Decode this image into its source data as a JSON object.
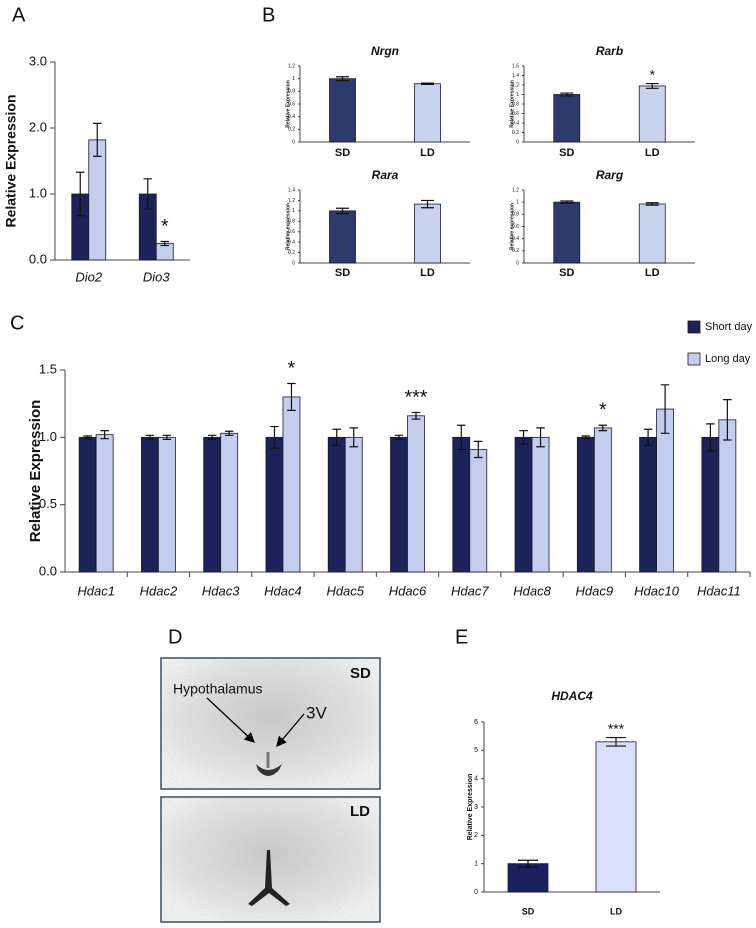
{
  "panel_labels": [
    "A",
    "B",
    "C",
    "D",
    "E"
  ],
  "chart_data": [
    {
      "type": "bar",
      "categories": [
        "Dio2",
        "Dio3"
      ],
      "series": [
        {
          "color": "#1c2358",
          "values": [
            1.0,
            1.0
          ],
          "errors": [
            0.33,
            0.23
          ]
        },
        {
          "color": "#c3cdee",
          "values": [
            1.82,
            0.25
          ],
          "errors": [
            0.25,
            0.03
          ],
          "annotations": [
            null,
            "*"
          ]
        }
      ],
      "ylim": [
        0,
        3
      ],
      "yticks": [
        {
          "value": 0,
          "label": "0.0"
        },
        {
          "value": 1,
          "label": "1.0"
        },
        {
          "value": 2,
          "label": "2.0"
        },
        {
          "value": 3,
          "label": "3.0"
        }
      ],
      "ylabel": "Relative Expression"
    },
    {
      "type": "bar",
      "title": "Nrgn",
      "categories": [
        "SD",
        "LD"
      ],
      "series": [
        {
          "colors": [
            "#2d3a6b",
            "#c8d3f0"
          ],
          "values": [
            1.0,
            0.92
          ],
          "errors": [
            0.03,
            0.01
          ]
        }
      ],
      "ylim": [
        0,
        1.2
      ],
      "yticks": [
        0,
        0.2,
        0.4,
        0.6,
        0.8,
        1,
        1.2
      ],
      "ylabel": "Relative Expression"
    },
    {
      "type": "bar",
      "title": "Rarb",
      "categories": [
        "SD",
        "LD"
      ],
      "series": [
        {
          "colors": [
            "#2d3a6b",
            "#c8d3f0"
          ],
          "values": [
            1.0,
            1.18
          ],
          "errors": [
            0.03,
            0.05
          ],
          "annotations": [
            null,
            "*"
          ]
        }
      ],
      "ylim": [
        0,
        1.6
      ],
      "yticks": [
        0,
        0.2,
        0.4,
        0.6,
        0.8,
        1,
        1.2,
        1.4,
        1.6
      ],
      "ylabel": "Relative Expression"
    },
    {
      "type": "bar",
      "title": "Rara",
      "categories": [
        "SD",
        "LD"
      ],
      "series": [
        {
          "colors": [
            "#2d3a6b",
            "#c8d3f0"
          ],
          "values": [
            1.0,
            1.13
          ],
          "errors": [
            0.05,
            0.07
          ]
        }
      ],
      "ylim": [
        0,
        1.4
      ],
      "yticks": [
        0,
        0.2,
        0.4,
        0.6,
        0.8,
        1,
        1.2,
        1.4
      ],
      "ylabel": "Relative expression"
    },
    {
      "type": "bar",
      "title": "Rarg",
      "categories": [
        "SD",
        "LD"
      ],
      "series": [
        {
          "colors": [
            "#2d3a6b",
            "#c8d3f0"
          ],
          "values": [
            1.0,
            0.97
          ],
          "errors": [
            0.02,
            0.02
          ]
        }
      ],
      "ylim": [
        0,
        1.2
      ],
      "yticks": [
        0,
        0.2,
        0.4,
        0.6,
        0.8,
        1,
        1.2
      ],
      "ylabel": "Relative expression"
    },
    {
      "type": "bar",
      "categories": [
        "Hdac1",
        "Hdac2",
        "Hdac3",
        "Hdac4",
        "Hdac5",
        "Hdac6",
        "Hdac7",
        "Hdac8",
        "Hdac9",
        "Hdac10",
        "Hdac11"
      ],
      "series": [
        {
          "name": "Short day",
          "color": "#1c2358",
          "values": [
            1.0,
            1.0,
            1.0,
            1.0,
            1.0,
            1.0,
            1.0,
            1.0,
            1.0,
            1.0,
            1.0
          ],
          "errors": [
            0.01,
            0.015,
            0.015,
            0.08,
            0.06,
            0.015,
            0.09,
            0.05,
            0.01,
            0.06,
            0.1
          ]
        },
        {
          "name": "Long day",
          "color": "#c3cdee",
          "values": [
            1.02,
            1.0,
            1.03,
            1.3,
            1.0,
            1.16,
            0.91,
            1.0,
            1.07,
            1.21,
            1.13
          ],
          "errors": [
            0.03,
            0.015,
            0.015,
            0.1,
            0.07,
            0.025,
            0.06,
            0.07,
            0.02,
            0.18,
            0.15
          ],
          "annotations": [
            null,
            null,
            null,
            "*",
            null,
            "***",
            null,
            null,
            "*",
            null,
            null
          ]
        }
      ],
      "ylim": [
        0,
        1.5
      ],
      "yticks": [
        {
          "value": 0,
          "label": "0.0"
        },
        0.5,
        {
          "value": 1,
          "label": "1.0"
        },
        1.5
      ],
      "ylabel": "Relative Expression",
      "legend": "top-right"
    },
    {
      "type": "bar",
      "title": "HDAC4",
      "categories": [
        "SD",
        "LD"
      ],
      "series": [
        {
          "colors": [
            "#1a1f5e",
            "#d9e1fa"
          ],
          "values": [
            1.0,
            5.3
          ],
          "errors": [
            0.12,
            0.15
          ],
          "annotations": [
            null,
            "***"
          ]
        }
      ],
      "ylim": [
        0,
        6
      ],
      "yticks": [
        0,
        1,
        2,
        3,
        4,
        5,
        6
      ],
      "ylabel": "Relative Expression"
    }
  ],
  "brain_images": {
    "top_tag": "SD",
    "bottom_tag": "LD",
    "region_label": "Hypothalamus",
    "ventricle_label": "3V"
  }
}
